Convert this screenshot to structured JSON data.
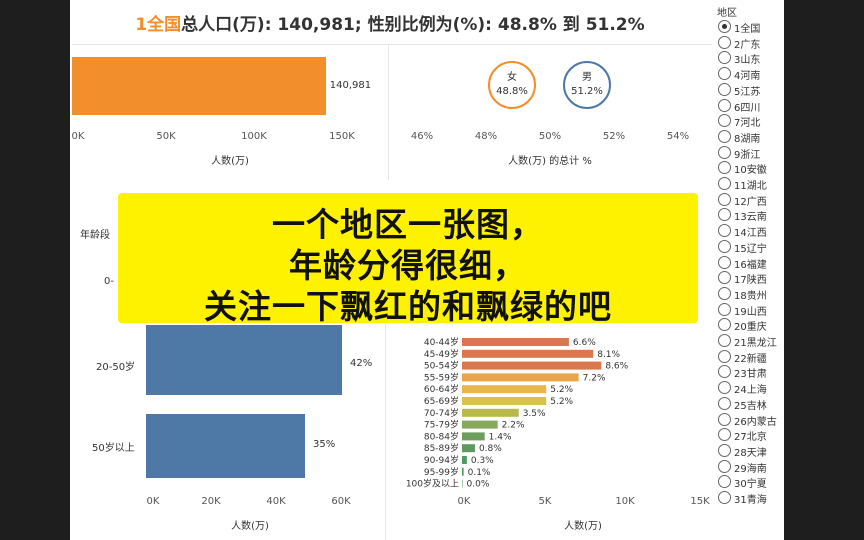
{
  "header": {
    "selected_region": "1全国",
    "population_label": "总人口(万):",
    "population_value": "140,981;",
    "ratio_label": "性别比例为(%):",
    "ratio_value": "48.8% 到 51.2%"
  },
  "top_left_chart": {
    "bar_value_label": "140,981",
    "ticks": [
      "0K",
      "50K",
      "100K",
      "150K"
    ],
    "xlabel": "人数(万)"
  },
  "gender_chart": {
    "female_label": "女",
    "female_value": "48.8%",
    "male_label": "男",
    "male_value": "51.2%",
    "ticks": [
      "46%",
      "48%",
      "50%",
      "52%",
      "54%"
    ],
    "xlabel": "人数(万)   的总计 %"
  },
  "age_group_chart": {
    "ylabel_partial": "年龄段",
    "rows": [
      {
        "label": "0-",
        "value_label": ""
      },
      {
        "label": "20-50岁",
        "value_label": "42%"
      },
      {
        "label": "50岁以上",
        "value_label": "35%"
      }
    ],
    "ticks": [
      "0K",
      "20K",
      "40K",
      "60K"
    ],
    "xlabel": "人数(万)"
  },
  "age_detail_chart": {
    "ticks": [
      "0K",
      "5K",
      "10K",
      "15K"
    ],
    "xlabel": "人数(万)"
  },
  "chart_data": [
    {
      "type": "bar",
      "categories": [
        "1全国"
      ],
      "values": [
        140981
      ],
      "xlabel": "人数(万)",
      "xlim": [
        0,
        150000
      ]
    },
    {
      "type": "scatter",
      "categories": [
        "女",
        "男"
      ],
      "values": [
        48.8,
        51.2
      ],
      "xlabel": "人数(万)   的总计 %",
      "xlim": [
        46,
        54
      ]
    },
    {
      "type": "bar",
      "categories": [
        "0-",
        "20-50岁",
        "50岁以上"
      ],
      "series": [
        {
          "values": [
            null,
            42,
            35
          ]
        }
      ],
      "xlabel": "人数(万)",
      "xlim": [
        0,
        60000
      ]
    },
    {
      "type": "bar",
      "categories": [
        "40-44岁",
        "45-49岁",
        "50-54岁",
        "55-59岁",
        "60-64岁",
        "65-69岁",
        "70-74岁",
        "75-79岁",
        "80-84岁",
        "85-89岁",
        "90-94岁",
        "95-99岁",
        "100岁及以上"
      ],
      "values": [
        6.6,
        8.1,
        8.6,
        7.2,
        5.2,
        5.2,
        3.5,
        2.2,
        1.4,
        0.8,
        0.3,
        0.1,
        0.0
      ],
      "value_labels": [
        "6.6%",
        "8.1%",
        "8.6%",
        "7.2%",
        "5.2%",
        "5.2%",
        "3.5%",
        "2.2%",
        "1.4%",
        "0.8%",
        "0.3%",
        "0.1%",
        "0.0%"
      ],
      "xlabel": "人数(万)",
      "xlim": [
        0,
        15000
      ]
    }
  ],
  "legend": {
    "title": "地区",
    "items": [
      "1全国",
      "2广东",
      "3山东",
      "4河南",
      "5江苏",
      "6四川",
      "7河北",
      "8湖南",
      "9浙江",
      "10安徽",
      "11湖北",
      "12广西",
      "13云南",
      "14江西",
      "15辽宁",
      "16福建",
      "17陕西",
      "18贵州",
      "19山西",
      "20重庆",
      "21黑龙江",
      "22新疆",
      "23甘肃",
      "24上海",
      "25吉林",
      "26内蒙古",
      "27北京",
      "28天津",
      "29海南",
      "30宁夏",
      "31青海"
    ],
    "selected_index": 0
  },
  "overlay": {
    "line1": "一个地区一张图，",
    "line2": "年龄分得很细，",
    "line3": "关注一下飘红的和飘绿的吧"
  },
  "colors": {
    "orange": "#f28e2b",
    "blue": "#4e79a7",
    "female_circle": "#f28e2b",
    "male_circle": "#4e79a7",
    "banner": "#fff200"
  }
}
